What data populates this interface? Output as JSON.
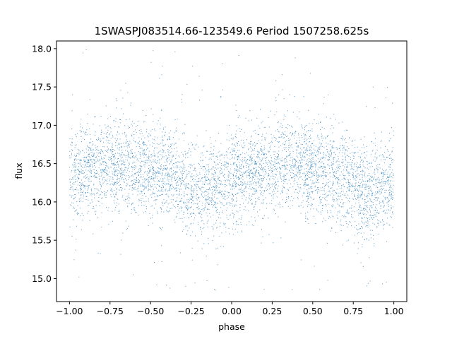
{
  "chart_data": {
    "type": "scatter",
    "title": "1SWASPJ083514.66-123549.6 Period 1507258.625s",
    "xlabel": "phase",
    "ylabel": "flux",
    "xlim": [
      -1.08,
      1.08
    ],
    "ylim": [
      14.7,
      18.1
    ],
    "xticks": [
      -1.0,
      -0.75,
      -0.5,
      -0.25,
      0.0,
      0.25,
      0.5,
      0.75,
      1.0
    ],
    "xtick_labels": [
      "−1.00",
      "−0.75",
      "−0.50",
      "−0.25",
      "0.00",
      "0.25",
      "0.50",
      "0.75",
      "1.00"
    ],
    "yticks": [
      15.0,
      15.5,
      16.0,
      16.5,
      17.0,
      17.5,
      18.0
    ],
    "ytick_labels": [
      "15.0",
      "15.5",
      "16.0",
      "16.5",
      "17.0",
      "17.5",
      "18.0"
    ],
    "grid": false,
    "legend": "none",
    "point_color": "#1f77b4",
    "phase_range": [
      -1.0,
      1.0
    ],
    "mean_flux_curve": {
      "phase": [
        0.0,
        0.1,
        0.2,
        0.3,
        0.4,
        0.5,
        0.6,
        0.7,
        0.8,
        0.9,
        1.0
      ],
      "flux": [
        16.3,
        16.4,
        16.48,
        16.5,
        16.47,
        16.42,
        16.38,
        16.28,
        16.12,
        16.18,
        16.3
      ]
    },
    "flux_spread": 0.3,
    "flux_extremes": [
      14.85,
      18.0
    ]
  }
}
